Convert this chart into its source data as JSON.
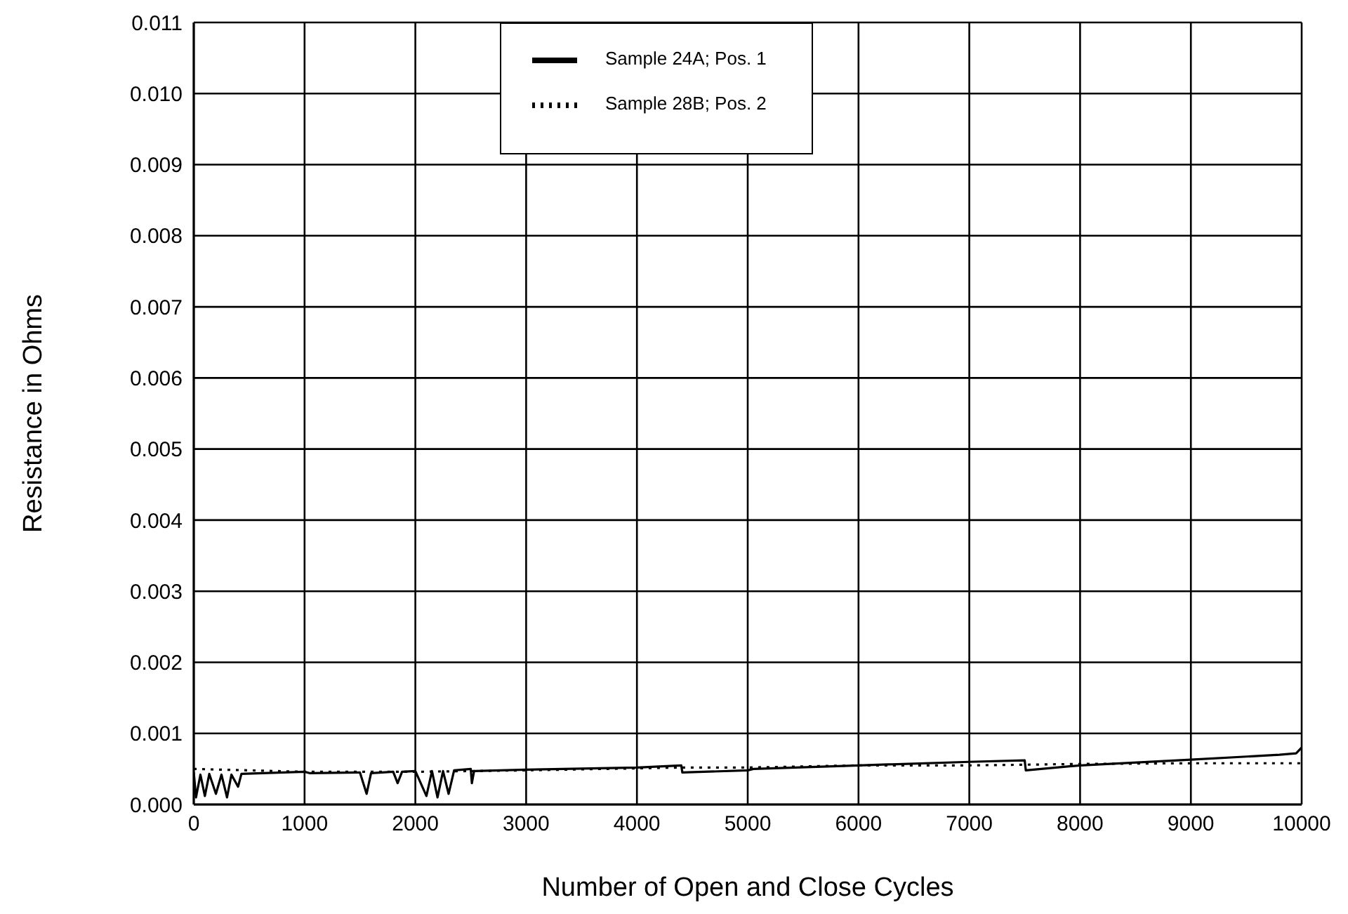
{
  "chart_data": {
    "type": "line",
    "xlabel": "Number of Open and Close Cycles",
    "ylabel": "Resistance in Ohms",
    "xlim": [
      0,
      10000
    ],
    "xticks": [
      0,
      1000,
      2000,
      3000,
      4000,
      5000,
      6000,
      7000,
      8000,
      9000,
      10000
    ],
    "ylim": [
      0,
      0.011
    ],
    "yticks": [
      {
        "value": 0,
        "label": "0.000"
      },
      {
        "value": 0.001,
        "label": "0.001"
      },
      {
        "value": 0.002,
        "label": "0.002"
      },
      {
        "value": 0.003,
        "label": "0.003"
      },
      {
        "value": 0.004,
        "label": "0.004"
      },
      {
        "value": 0.005,
        "label": "0.005"
      },
      {
        "value": 0.006,
        "label": "0.006"
      },
      {
        "value": 0.007,
        "label": "0.007"
      },
      {
        "value": 0.008,
        "label": "0.008"
      },
      {
        "value": 0.009,
        "label": "0.009"
      },
      {
        "value": 0.01,
        "label": "0.010"
      },
      {
        "value": 0.011,
        "label": "0.011"
      }
    ],
    "grid": true,
    "legend": "top",
    "marker": "none",
    "series": [
      {
        "name": "Sample 24A; Pos. 1",
        "color": "#000000",
        "line_style": "solid",
        "x": [
          0,
          20,
          60,
          100,
          140,
          200,
          250,
          300,
          340,
          400,
          430,
          1000,
          1050,
          1500,
          1560,
          1600,
          1800,
          1840,
          1880,
          2000,
          2100,
          2150,
          2200,
          2250,
          2300,
          2350,
          2500,
          2510,
          2530,
          3000,
          4000,
          4400,
          4410,
          5000,
          5050,
          6000,
          7000,
          7500,
          7510,
          8000,
          9000,
          9800,
          9950,
          10000
        ],
        "values": [
          0.00045,
          0.0001,
          0.00042,
          0.00012,
          0.00043,
          0.00015,
          0.00042,
          0.0001,
          0.00042,
          0.00025,
          0.00043,
          0.00046,
          0.00044,
          0.00045,
          0.00015,
          0.00044,
          0.00046,
          0.0003,
          0.00046,
          0.00047,
          0.00012,
          0.00047,
          0.0001,
          0.00047,
          0.00015,
          0.00048,
          0.0005,
          0.0003,
          0.00047,
          0.00049,
          0.00052,
          0.00055,
          0.00045,
          0.00048,
          0.0005,
          0.00055,
          0.0006,
          0.00062,
          0.00048,
          0.00055,
          0.00063,
          0.0007,
          0.00072,
          0.0008
        ]
      },
      {
        "name": "Sample 28B; Pos. 2",
        "color": "#000000",
        "line_style": "dotted",
        "x": [
          0,
          500,
          1000,
          2000,
          3000,
          4400,
          5000,
          6000,
          7000,
          8000,
          9000,
          10000
        ],
        "values": [
          0.0005,
          0.00048,
          0.00046,
          0.00046,
          0.00048,
          0.00052,
          0.00052,
          0.00055,
          0.00055,
          0.00057,
          0.00058,
          0.00058
        ]
      }
    ]
  }
}
